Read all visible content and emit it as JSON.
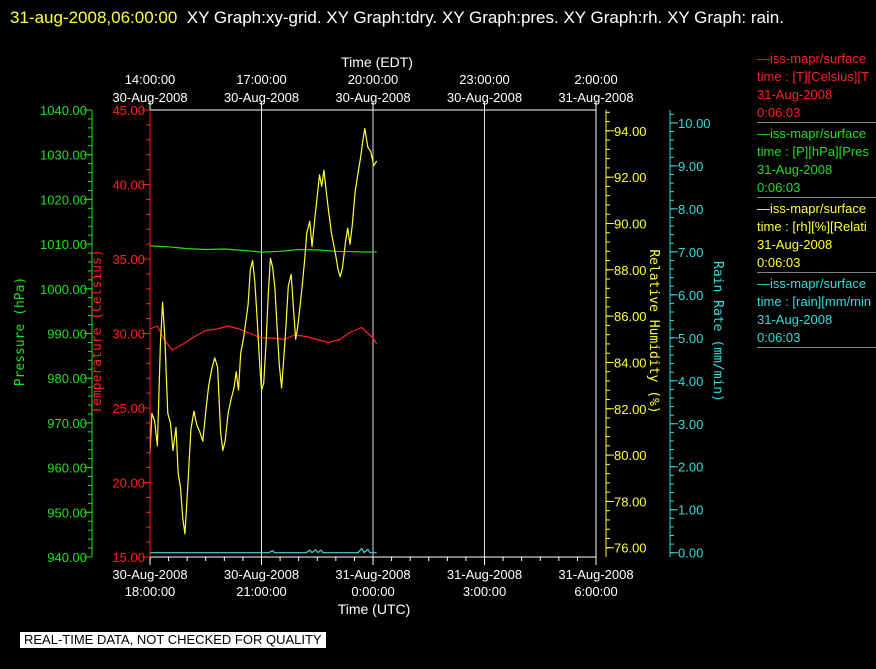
{
  "header": {
    "timestamp": "31-aug-2008,06:00:00",
    "graph_titles": "XY Graph:xy-grid.  XY Graph:tdry.  XY Graph:pres.  XY Graph:rh.  XY Graph: rain."
  },
  "footer": "REAL-TIME DATA, NOT CHECKED FOR QUALITY",
  "legend": [
    {
      "line1": "—iss-mapr/surface",
      "line2": "time : [T][Celsius][T",
      "line3": "31-Aug-2008",
      "line4": "0:06:03",
      "color": "#ff2020"
    },
    {
      "line1": "—iss-mapr/surface",
      "line2": "time : [P][hPa][Pres",
      "line3": "31-Aug-2008",
      "line4": "0:06:03",
      "color": "#22dd22"
    },
    {
      "line1": "—iss-mapr/surface",
      "line2": "time : [rh][%][Relati",
      "line3": "31-Aug-2008",
      "line4": "0:06:03",
      "color": "#ffff33"
    },
    {
      "line1": "—iss-mapr/surface",
      "line2": "time : [rain][mm/min",
      "line3": "31-Aug-2008",
      "line4": "0:06:03",
      "color": "#33dddd"
    }
  ],
  "chart_data": {
    "type": "line",
    "grid": "vertical lines at each UTC tick",
    "x_axis_top": {
      "label": "Time (EDT)",
      "ticks": [
        {
          "time": "14:00:00",
          "date": "30-Aug-2008"
        },
        {
          "time": "17:00:00",
          "date": "30-Aug-2008"
        },
        {
          "time": "20:00:00",
          "date": "30-Aug-2008"
        },
        {
          "time": "23:00:00",
          "date": "30-Aug-2008"
        },
        {
          "time": "2:00:00",
          "date": "31-Aug-2008"
        }
      ]
    },
    "x_axis_bottom": {
      "label": "Time (UTC)",
      "range_hours_utc": [
        18.0,
        30.0
      ],
      "ticks": [
        {
          "hour": 18,
          "date": "30-Aug-2008",
          "time": "18:00:00"
        },
        {
          "hour": 21,
          "date": "30-Aug-2008",
          "time": "21:00:00"
        },
        {
          "hour": 24,
          "date": "31-Aug-2008",
          "time": "0:00:00"
        },
        {
          "hour": 27,
          "date": "31-Aug-2008",
          "time": "3:00:00"
        },
        {
          "hour": 30,
          "date": "31-Aug-2008",
          "time": "6:00:00"
        }
      ]
    },
    "y_axes": [
      {
        "key": "pressure",
        "label": "Pressure (hPa)",
        "range": [
          940,
          1040
        ],
        "color": "#22dd22",
        "ticks": [
          "940.00",
          "950.00",
          "960.00",
          "970.00",
          "980.00",
          "990.00",
          "1000.00",
          "1010.00",
          "1020.00",
          "1030.00",
          "1040.00"
        ]
      },
      {
        "key": "temperature",
        "label": "Temperature (Celsius)",
        "range": [
          15,
          45
        ],
        "color": "#ff2020",
        "ticks": [
          "15.00",
          "20.00",
          "25.00",
          "30.00",
          "35.00",
          "40.00",
          "45.00"
        ]
      },
      {
        "key": "humidity",
        "label": "Relative Humidity (%)",
        "range": [
          75.6,
          94.9
        ],
        "color": "#ffff33",
        "ticks": [
          "76.00",
          "78.00",
          "80.00",
          "82.00",
          "84.00",
          "86.00",
          "88.00",
          "90.00",
          "92.00",
          "94.00"
        ]
      },
      {
        "key": "rain",
        "label": "Rain Rate (mm/min)",
        "range": [
          -0.1,
          10.3
        ],
        "color": "#33dddd",
        "ticks": [
          "0.00",
          "1.00",
          "2.00",
          "3.00",
          "4.00",
          "5.00",
          "6.00",
          "7.00",
          "8.00",
          "9.00",
          "10.00"
        ]
      }
    ],
    "series": [
      {
        "key": "temperature",
        "axis": "temperature",
        "color": "#ff2020",
        "points": [
          [
            18.0,
            30.3
          ],
          [
            18.2,
            30.5
          ],
          [
            18.4,
            29.5
          ],
          [
            18.6,
            28.9
          ],
          [
            18.9,
            29.3
          ],
          [
            19.2,
            29.8
          ],
          [
            19.5,
            30.2
          ],
          [
            19.8,
            30.3
          ],
          [
            20.1,
            30.5
          ],
          [
            20.4,
            30.3
          ],
          [
            20.7,
            30.0
          ],
          [
            21.0,
            29.7
          ],
          [
            21.3,
            29.7
          ],
          [
            21.6,
            29.6
          ],
          [
            21.9,
            29.9
          ],
          [
            22.2,
            29.8
          ],
          [
            22.5,
            29.6
          ],
          [
            22.8,
            29.4
          ],
          [
            23.1,
            29.6
          ],
          [
            23.4,
            30.1
          ],
          [
            23.7,
            30.4
          ],
          [
            24.0,
            29.7
          ],
          [
            24.1,
            29.3
          ]
        ]
      },
      {
        "key": "pressure",
        "axis": "pressure",
        "color": "#22dd22",
        "points": [
          [
            18.0,
            1009.6
          ],
          [
            18.5,
            1009.4
          ],
          [
            19.0,
            1009.0
          ],
          [
            19.5,
            1008.8
          ],
          [
            20.0,
            1008.9
          ],
          [
            20.5,
            1008.6
          ],
          [
            21.0,
            1008.2
          ],
          [
            21.5,
            1008.4
          ],
          [
            22.0,
            1008.8
          ],
          [
            22.5,
            1008.7
          ],
          [
            23.0,
            1008.4
          ],
          [
            23.5,
            1008.3
          ],
          [
            24.0,
            1008.2
          ],
          [
            24.1,
            1008.3
          ]
        ]
      },
      {
        "key": "humidity",
        "axis": "humidity",
        "color": "#ffff33",
        "points": [
          [
            18.0,
            80.1
          ],
          [
            18.05,
            81.8
          ],
          [
            18.12,
            81.5
          ],
          [
            18.2,
            80.4
          ],
          [
            18.28,
            84.8
          ],
          [
            18.34,
            86.6
          ],
          [
            18.4,
            85.0
          ],
          [
            18.48,
            81.8
          ],
          [
            18.55,
            81.4
          ],
          [
            18.62,
            80.2
          ],
          [
            18.7,
            81.2
          ],
          [
            18.76,
            79.2
          ],
          [
            18.82,
            78.6
          ],
          [
            18.88,
            77.3
          ],
          [
            18.94,
            76.6
          ],
          [
            19.0,
            78.2
          ],
          [
            19.1,
            81.1
          ],
          [
            19.18,
            81.9
          ],
          [
            19.26,
            81.3
          ],
          [
            19.34,
            81.0
          ],
          [
            19.42,
            80.6
          ],
          [
            19.5,
            81.9
          ],
          [
            19.58,
            83.0
          ],
          [
            19.66,
            83.7
          ],
          [
            19.74,
            84.2
          ],
          [
            19.82,
            83.8
          ],
          [
            19.9,
            81.0
          ],
          [
            19.96,
            80.2
          ],
          [
            20.02,
            80.6
          ],
          [
            20.1,
            81.8
          ],
          [
            20.18,
            82.4
          ],
          [
            20.26,
            82.9
          ],
          [
            20.32,
            83.6
          ],
          [
            20.38,
            82.8
          ],
          [
            20.44,
            84.4
          ],
          [
            20.52,
            85.1
          ],
          [
            20.58,
            85.8
          ],
          [
            20.64,
            86.5
          ],
          [
            20.7,
            88.0
          ],
          [
            20.76,
            88.4
          ],
          [
            20.82,
            87.5
          ],
          [
            20.88,
            86.0
          ],
          [
            20.94,
            84.2
          ],
          [
            21.0,
            82.8
          ],
          [
            21.06,
            83.1
          ],
          [
            21.12,
            84.8
          ],
          [
            21.18,
            86.9
          ],
          [
            21.24,
            88.5
          ],
          [
            21.3,
            88.1
          ],
          [
            21.36,
            87.2
          ],
          [
            21.42,
            85.5
          ],
          [
            21.48,
            83.9
          ],
          [
            21.54,
            82.9
          ],
          [
            21.6,
            84.2
          ],
          [
            21.66,
            85.6
          ],
          [
            21.72,
            87.3
          ],
          [
            21.8,
            87.8
          ],
          [
            21.86,
            86.3
          ],
          [
            21.92,
            85.0
          ],
          [
            21.98,
            85.6
          ],
          [
            22.04,
            86.5
          ],
          [
            22.1,
            87.4
          ],
          [
            22.16,
            88.4
          ],
          [
            22.22,
            89.6
          ],
          [
            22.3,
            90.1
          ],
          [
            22.36,
            89.0
          ],
          [
            22.42,
            90.0
          ],
          [
            22.5,
            91.2
          ],
          [
            22.56,
            92.1
          ],
          [
            22.62,
            91.6
          ],
          [
            22.68,
            92.3
          ],
          [
            22.74,
            91.4
          ],
          [
            22.8,
            90.6
          ],
          [
            22.88,
            89.6
          ],
          [
            22.94,
            89.1
          ],
          [
            23.0,
            88.6
          ],
          [
            23.06,
            88.0
          ],
          [
            23.12,
            87.7
          ],
          [
            23.18,
            88.1
          ],
          [
            23.26,
            89.2
          ],
          [
            23.32,
            89.8
          ],
          [
            23.38,
            89.1
          ],
          [
            23.44,
            89.9
          ],
          [
            23.52,
            91.4
          ],
          [
            23.6,
            92.2
          ],
          [
            23.66,
            92.8
          ],
          [
            23.72,
            93.5
          ],
          [
            23.78,
            94.1
          ],
          [
            23.86,
            93.3
          ],
          [
            23.94,
            93.1
          ],
          [
            24.02,
            92.5
          ],
          [
            24.1,
            92.7
          ]
        ]
      },
      {
        "key": "rain",
        "axis": "rain",
        "color": "#33dddd",
        "points": [
          [
            18.0,
            0.0
          ],
          [
            21.2,
            0.0
          ],
          [
            21.3,
            0.05
          ],
          [
            21.35,
            0.0
          ],
          [
            22.2,
            0.0
          ],
          [
            22.3,
            0.06
          ],
          [
            22.36,
            0.0
          ],
          [
            22.46,
            0.07
          ],
          [
            22.52,
            0.0
          ],
          [
            22.6,
            0.06
          ],
          [
            22.66,
            0.0
          ],
          [
            23.6,
            0.0
          ],
          [
            23.7,
            0.1
          ],
          [
            23.76,
            0.0
          ],
          [
            23.86,
            0.08
          ],
          [
            23.92,
            0.0
          ],
          [
            24.1,
            0.0
          ]
        ]
      }
    ]
  }
}
